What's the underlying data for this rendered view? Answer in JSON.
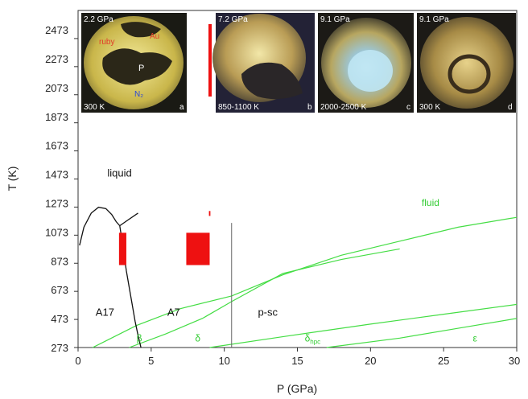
{
  "chart_data": {
    "type": "line",
    "title": "",
    "xlabel": "P (GPa)",
    "ylabel": "T (K)",
    "xlim": [
      0,
      30
    ],
    "ylim": [
      273,
      2673
    ],
    "x_ticks": [
      "0",
      "5",
      "10",
      "15",
      "20",
      "25",
      "30"
    ],
    "y_ticks": [
      "273",
      "473",
      "673",
      "873",
      "1073",
      "1273",
      "1473",
      "1673",
      "1873",
      "2073",
      "2273",
      "2473"
    ],
    "grid": false,
    "legend": "none",
    "colors": {
      "phase_line": "#111111",
      "green_line": "#44dd44",
      "marker": "#ee1111"
    },
    "black_lines": [
      {
        "points": [
          [
            0.1,
            1000
          ],
          [
            0.4,
            1130
          ],
          [
            0.9,
            1230
          ],
          [
            1.4,
            1272
          ],
          [
            1.9,
            1262
          ],
          [
            2.3,
            1220
          ],
          [
            2.6,
            1170
          ],
          [
            2.85,
            1140
          ]
        ]
      },
      {
        "points": [
          [
            2.85,
            1140
          ],
          [
            3.4,
            1180
          ],
          [
            4.1,
            1230
          ]
        ]
      },
      {
        "points": [
          [
            2.85,
            1140
          ],
          [
            3.0,
            1040
          ],
          [
            3.15,
            930
          ],
          [
            3.3,
            820
          ],
          [
            3.5,
            700
          ],
          [
            3.7,
            580
          ],
          [
            3.9,
            460
          ],
          [
            4.1,
            360
          ],
          [
            4.3,
            273
          ]
        ]
      },
      {
        "points": [
          [
            10.5,
            1160
          ],
          [
            10.5,
            273
          ]
        ]
      }
    ],
    "green_lines": [
      {
        "points": [
          [
            1.0,
            273
          ],
          [
            4.0,
            430
          ],
          [
            7.0,
            550
          ],
          [
            10.5,
            640
          ],
          [
            14,
            790
          ],
          [
            18,
            930
          ],
          [
            22,
            1030
          ],
          [
            26,
            1130
          ],
          [
            30,
            1200
          ]
        ]
      },
      {
        "points": [
          [
            3.5,
            273
          ],
          [
            6,
            370
          ],
          [
            8.5,
            480
          ],
          [
            10.5,
            600
          ],
          [
            14,
            800
          ],
          [
            18,
            900
          ],
          [
            22,
            975
          ]
        ]
      },
      {
        "points": [
          [
            9,
            273
          ],
          [
            14,
            350
          ],
          [
            20,
            440
          ],
          [
            25,
            510
          ],
          [
            30,
            580
          ]
        ]
      },
      {
        "points": [
          [
            17,
            273
          ],
          [
            22,
            340
          ],
          [
            26,
            410
          ],
          [
            30,
            480
          ]
        ]
      }
    ],
    "red_markers": [
      {
        "x0": 2.8,
        "x1": 3.3,
        "y0": 860,
        "y1": 1090
      },
      {
        "x0": 7.4,
        "x1": 9.0,
        "y0": 860,
        "y1": 1090
      },
      {
        "x0": 8.95,
        "x1": 9.05,
        "y0": 1210,
        "y1": 1245
      }
    ],
    "phase_labels": [
      {
        "text": "liquid",
        "x": 2.0,
        "y": 1490
      },
      {
        "text": "A17",
        "x": 1.2,
        "y": 500
      },
      {
        "text": "A7",
        "x": 6.1,
        "y": 500
      },
      {
        "text": "p-sc",
        "x": 12.3,
        "y": 500
      }
    ],
    "green_labels": [
      {
        "text": "fluid",
        "x": 23.5,
        "y": 1280
      },
      {
        "text": "β",
        "x": 4.0,
        "y": 315
      },
      {
        "text": "δ",
        "x": 8.0,
        "y": 315
      },
      {
        "text": "ε",
        "x": 27.0,
        "y": 315
      }
    ],
    "delta_hpc": {
      "main": "δ",
      "sub": "hpc",
      "x": 15.5,
      "y": 315
    }
  },
  "photos": [
    {
      "pressure": "2.2 GPa",
      "temperature": "300 K",
      "letter": "a",
      "annotations": [
        "ruby",
        "Au",
        "P",
        "N₂"
      ]
    },
    {
      "pressure": "7.2 GPa",
      "temperature": "850-1100 K",
      "letter": "b",
      "annotations": []
    },
    {
      "pressure": "9.1 GPa",
      "temperature": "2000-2500 K",
      "letter": "c",
      "annotations": []
    },
    {
      "pressure": "9.1 GPa",
      "temperature": "300 K",
      "letter": "d",
      "annotations": []
    }
  ]
}
